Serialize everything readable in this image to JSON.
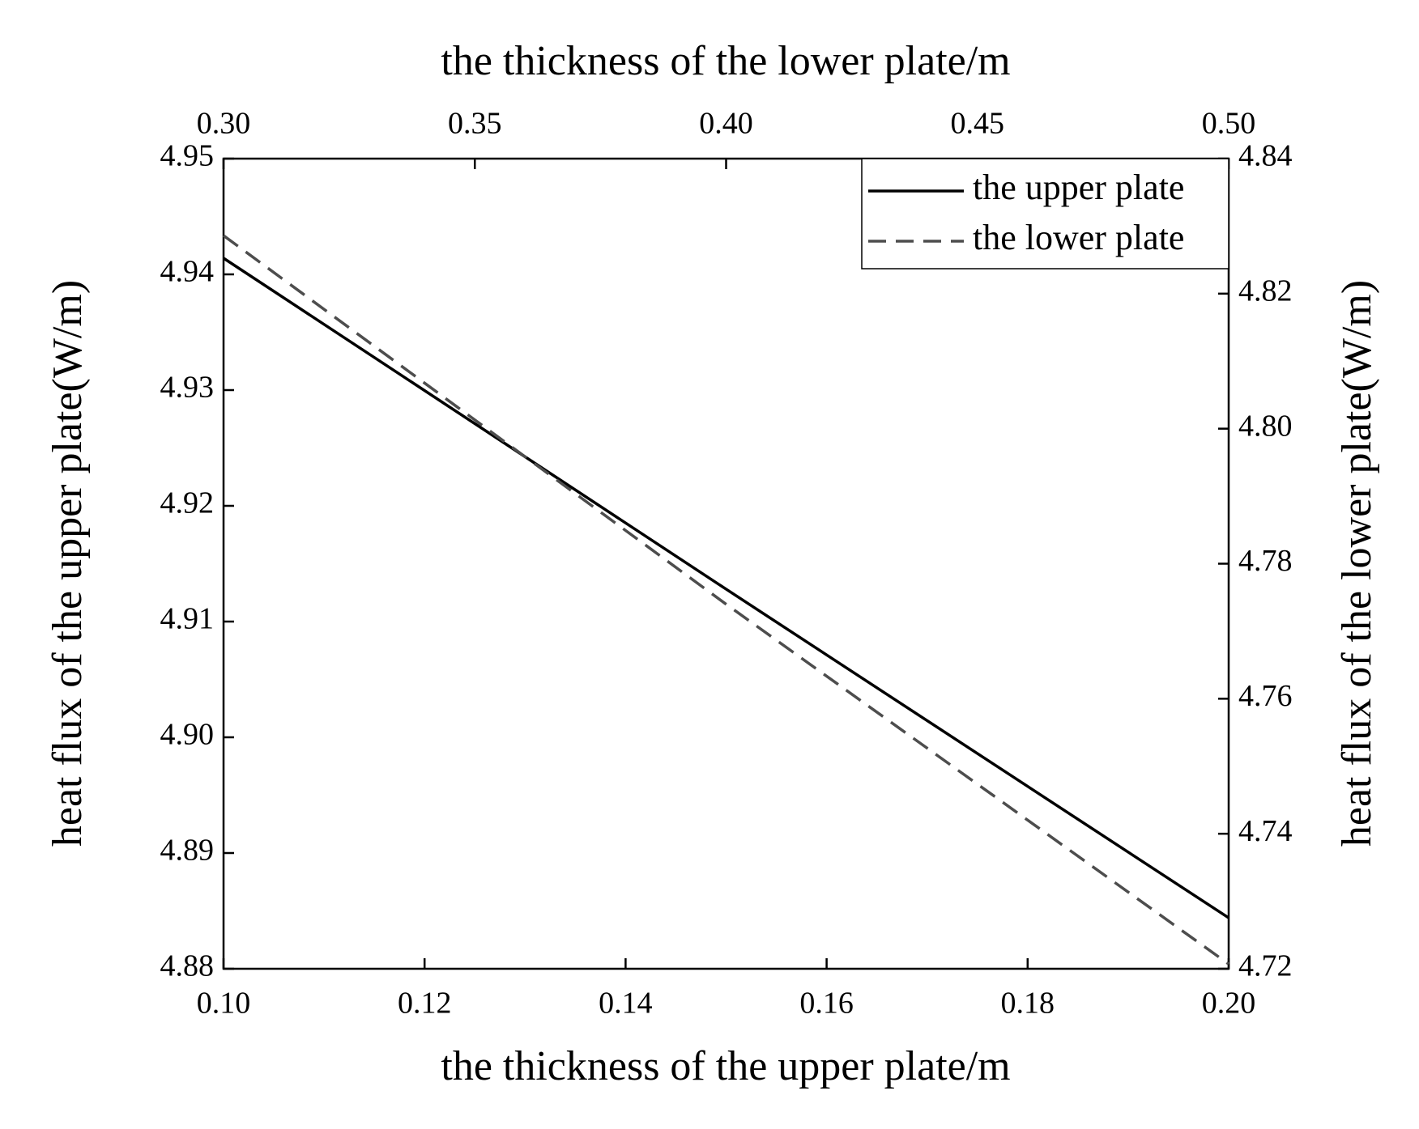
{
  "chart_data": {
    "type": "line",
    "title": "the thickness of the lower plate/m",
    "xlabel": "the thickness of the upper plate/m",
    "ylabel": "heat flux of the upper plate(W/m)",
    "y2label": "heat flux of the lower plate(W/m)",
    "xlim": [
      0.1,
      0.2
    ],
    "xticks": [
      {
        "value": 0.1,
        "label": "0.10"
      },
      {
        "value": 0.12,
        "label": "0.12"
      },
      {
        "value": 0.14,
        "label": "0.14"
      },
      {
        "value": 0.16,
        "label": "0.16"
      },
      {
        "value": 0.18,
        "label": "0.18"
      },
      {
        "value": 0.2,
        "label": "0.20"
      }
    ],
    "x2lim": [
      0.3,
      0.5
    ],
    "x2ticks": [
      {
        "value": 0.3,
        "label": "0.30"
      },
      {
        "value": 0.35,
        "label": "0.35"
      },
      {
        "value": 0.4,
        "label": "0.40"
      },
      {
        "value": 0.45,
        "label": "0.45"
      },
      {
        "value": 0.5,
        "label": "0.50"
      }
    ],
    "ylim": [
      4.88,
      4.95
    ],
    "yticks": [
      4.88,
      4.89,
      {
        "value": 4.9,
        "label": "4.90"
      },
      4.91,
      4.92,
      4.93,
      4.94,
      4.95
    ],
    "y2lim": [
      4.72,
      4.84
    ],
    "y2ticks": [
      4.72,
      4.74,
      4.76,
      4.78,
      {
        "value": 4.8,
        "label": "4.80"
      },
      4.82,
      4.84
    ],
    "legend": "upper right",
    "series": [
      {
        "name": "the upper plate",
        "color": "#000000",
        "dash": "solid",
        "x": [
          0.1,
          0.15,
          0.2
        ],
        "values": [
          4.9414,
          4.9128,
          4.8844
        ]
      },
      {
        "name": "the lower plate",
        "color": "#4d4d4d",
        "dash": "dashed",
        "axis": "y2",
        "xaxis": "x2",
        "x": [
          0.3,
          0.4,
          0.5
        ],
        "values": [
          4.8286,
          4.774,
          4.7207
        ]
      }
    ]
  }
}
